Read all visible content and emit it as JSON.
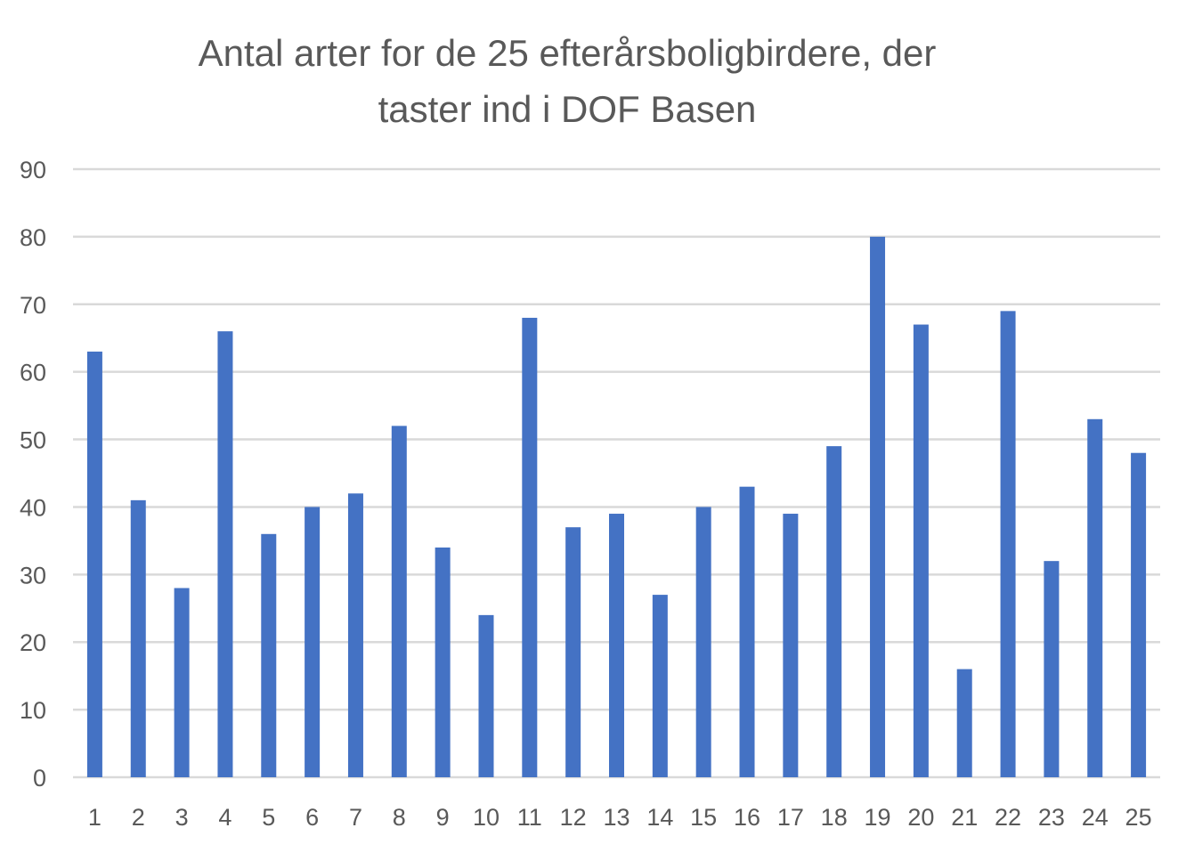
{
  "chart_data": {
    "type": "bar",
    "title_lines": [
      "Antal arter for de 25 efterårsboligbirdere, der",
      "taster ind i DOF Basen"
    ],
    "xlabel": "",
    "ylabel": "",
    "categories": [
      "1",
      "2",
      "3",
      "4",
      "5",
      "6",
      "7",
      "8",
      "9",
      "10",
      "11",
      "12",
      "13",
      "14",
      "15",
      "16",
      "17",
      "18",
      "19",
      "20",
      "21",
      "22",
      "23",
      "24",
      "25"
    ],
    "values": [
      63,
      41,
      28,
      66,
      36,
      40,
      42,
      52,
      34,
      24,
      68,
      37,
      39,
      27,
      40,
      43,
      39,
      49,
      80,
      67,
      16,
      69,
      32,
      53,
      48
    ],
    "ylim": [
      0,
      90
    ],
    "yticks": [
      0,
      10,
      20,
      30,
      40,
      50,
      60,
      70,
      80,
      90
    ],
    "grid": true,
    "legend": "none",
    "bar_color": "#4472C4",
    "grid_color": "#D9D9D9",
    "text_color": "#595959"
  }
}
